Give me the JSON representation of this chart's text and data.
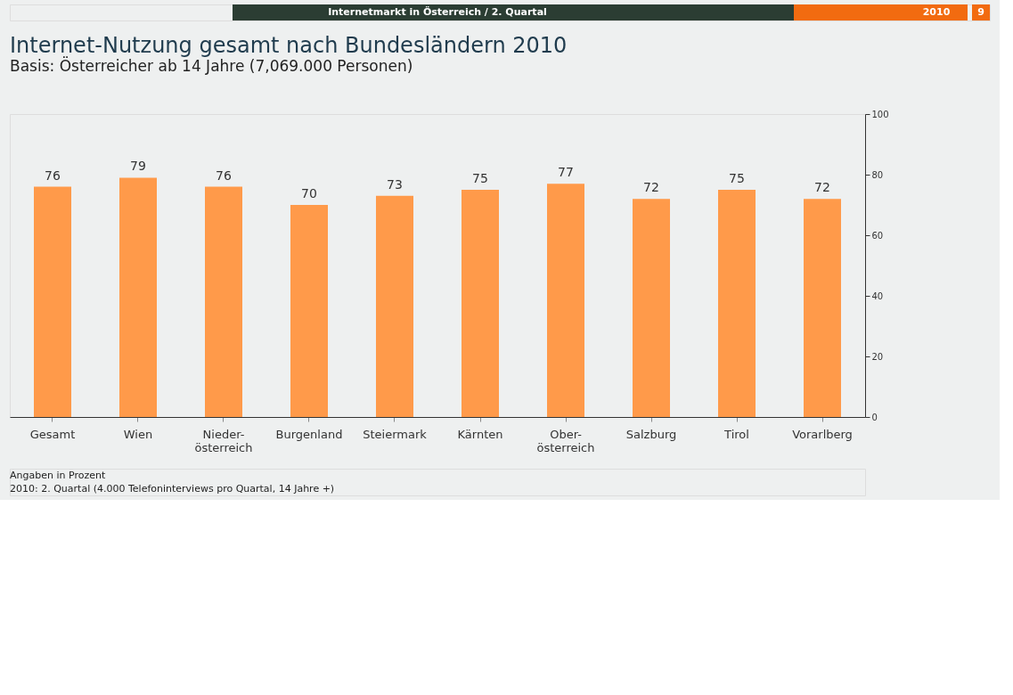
{
  "chart_data": {
    "type": "bar",
    "title": "Internet-Nutzung gesamt nach Bundesländern 2010",
    "subtitle": "Basis: Österreicher ab 14 Jahre (7,069.000 Personen)",
    "categories": [
      "Gesamt",
      "Wien",
      "Nieder-\nösterreich",
      "Burgenland",
      "Steiermark",
      "Kärnten",
      "Ober-\nösterreich",
      "Salzburg",
      "Tirol",
      "Vorarlberg"
    ],
    "values": [
      76,
      79,
      76,
      70,
      73,
      75,
      77,
      72,
      75,
      72
    ],
    "color": "#ff9a4a",
    "ylim": [
      0,
      100
    ],
    "yticks": [
      0,
      20,
      40,
      60,
      80,
      100
    ],
    "grid": false,
    "data_labels": true,
    "annotations": [
      "Internetmarkt in Österreich / 2. Quartal",
      "2010",
      "9",
      "Angaben in Prozent",
      "2010: 2. Quartal (4.000 Telefoninterviews pro Quartal, 14 Jahre +)"
    ]
  }
}
